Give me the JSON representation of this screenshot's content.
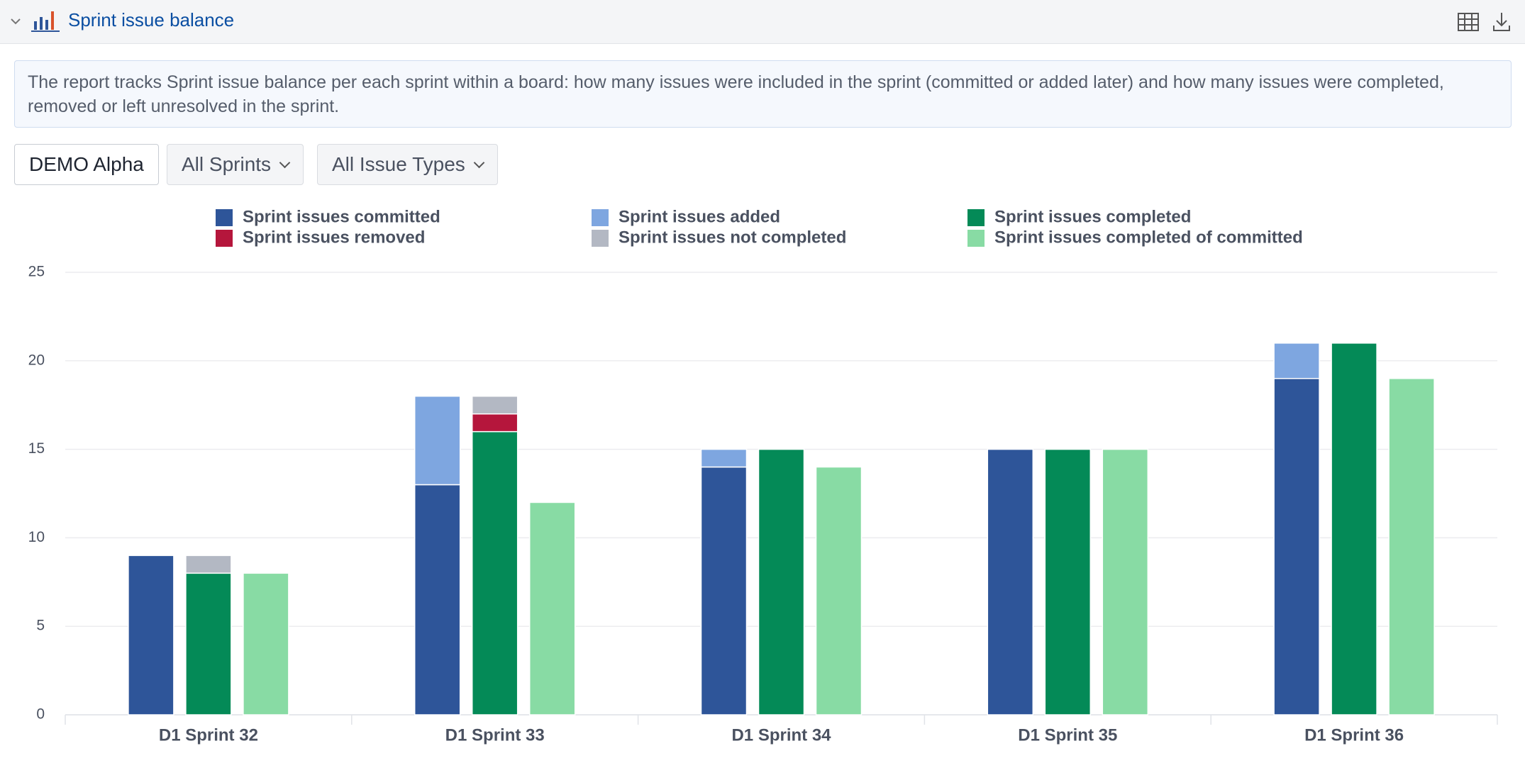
{
  "header": {
    "title": "Sprint issue balance"
  },
  "description": "The report tracks Sprint issue balance per each sprint within a board: how many issues were included in the sprint (committed or added later) and how many issues were completed, removed or left unresolved in the sprint.",
  "filters": [
    "DEMO Alpha",
    "All Sprints",
    "All Issue Types"
  ],
  "chart_data": {
    "type": "bar",
    "stacked": true,
    "categories": [
      "D1 Sprint 32",
      "D1 Sprint 33",
      "D1 Sprint 34",
      "D1 Sprint 35",
      "D1 Sprint 36"
    ],
    "series": [
      {
        "name": "Sprint issues committed",
        "color": "#2e5599",
        "stack": 0,
        "values": [
          9,
          13,
          14,
          15,
          19
        ]
      },
      {
        "name": "Sprint issues added",
        "color": "#7ea6e0",
        "stack": 0,
        "values": [
          0,
          5,
          1,
          0,
          2
        ]
      },
      {
        "name": "Sprint issues completed",
        "color": "#048a57",
        "stack": 1,
        "values": [
          8,
          16,
          15,
          15,
          21
        ]
      },
      {
        "name": "Sprint issues removed",
        "color": "#b5163c",
        "stack": 1,
        "values": [
          0,
          1,
          0,
          0,
          0
        ]
      },
      {
        "name": "Sprint issues not completed",
        "color": "#b3b8c3",
        "stack": 1,
        "values": [
          1,
          1,
          0,
          0,
          0
        ]
      },
      {
        "name": "Sprint issues completed of committed",
        "color": "#88dba4",
        "stack": 2,
        "values": [
          8,
          12,
          14,
          15,
          19
        ]
      }
    ],
    "ylim": [
      0,
      25
    ],
    "yticks": [
      0,
      5,
      10,
      15,
      20,
      25
    ],
    "grid": true,
    "legend": "top"
  }
}
